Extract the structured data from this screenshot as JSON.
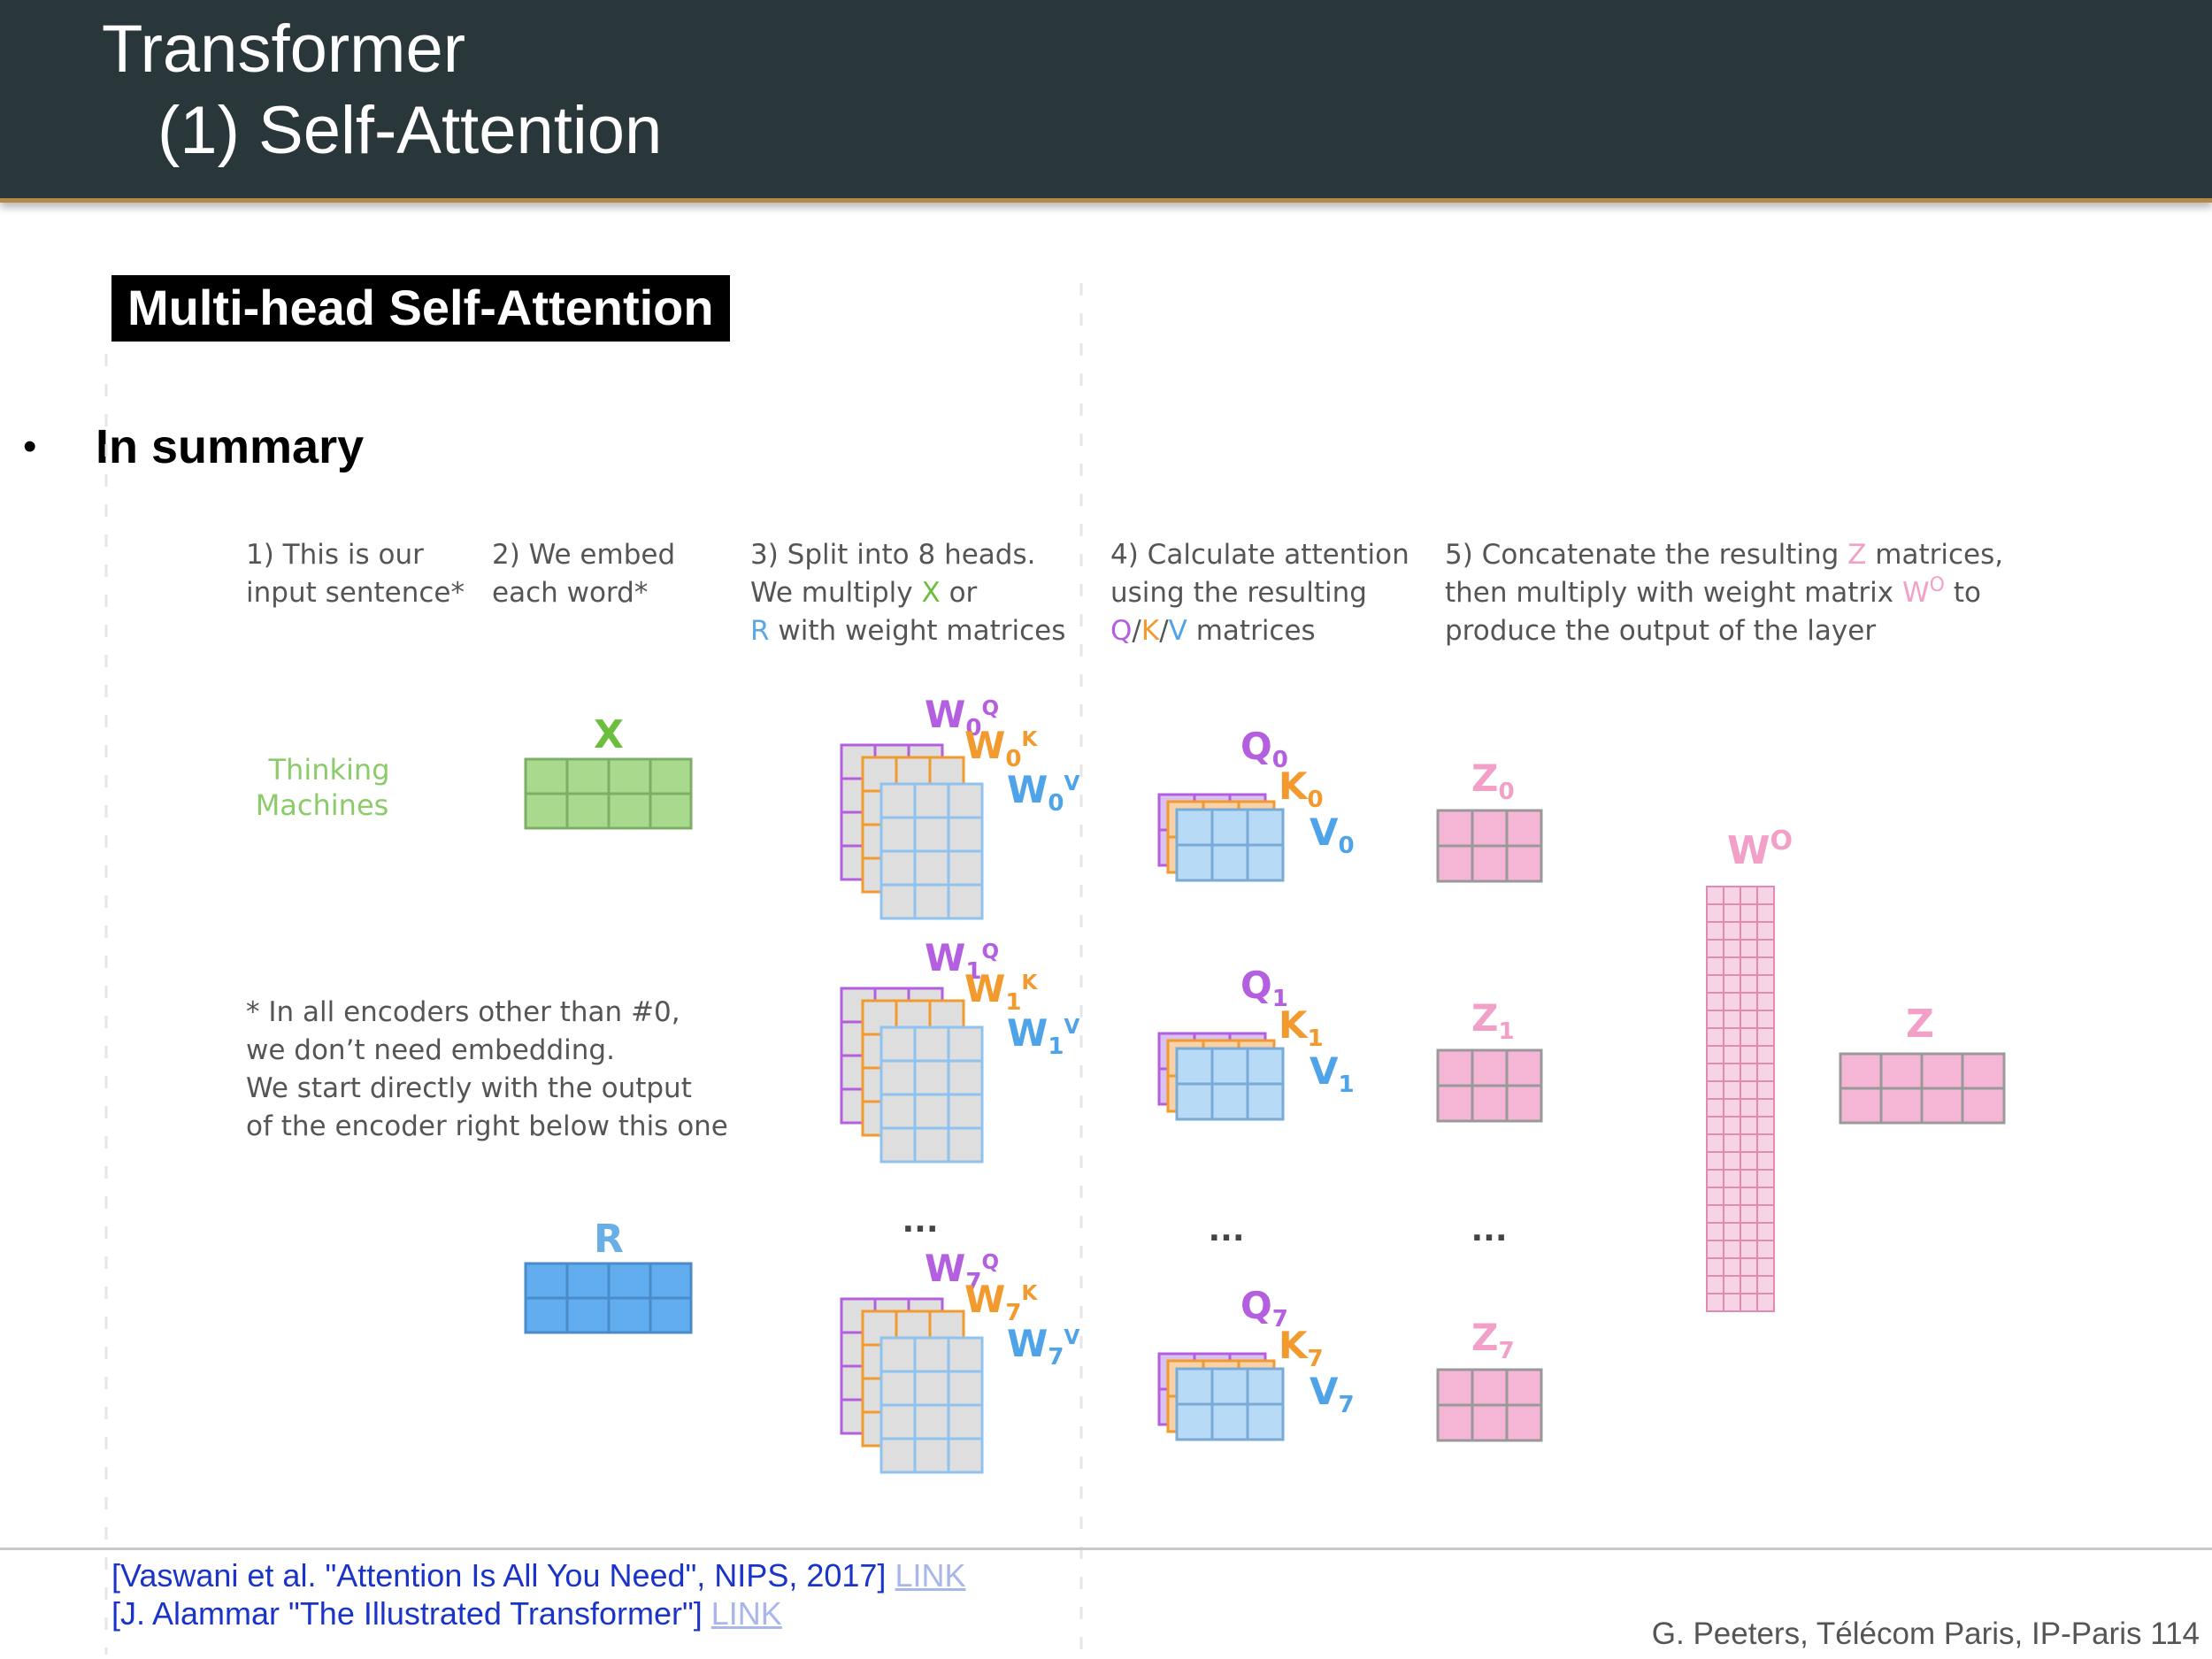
{
  "header": {
    "title_line1": "Transformer",
    "title_line2": "(1) Self-Attention"
  },
  "section_tag": "Multi-head Self-Attention",
  "bullet": "In summary",
  "steps": {
    "s1": [
      "1) This is our",
      "input sentence*"
    ],
    "s2": [
      "2) We embed",
      "each word*"
    ],
    "s3_l1": "3) Split into 8 heads.",
    "s3_l2_pre": "We multiply ",
    "s3_l2_x": "X",
    "s3_l2_post": " or",
    "s3_l3_r": "R",
    "s3_l3_post": " with weight matrices",
    "s4_l1": "4) Calculate attention",
    "s4_l2": "using the resulting",
    "s4_q": "Q",
    "s4_k": "K",
    "s4_v": "V",
    "s4_sep": "/",
    "s4_post": " matrices",
    "s5_l1_pre": "5) Concatenate the resulting ",
    "s5_l1_z": "Z",
    "s5_l1_post": " matrices,",
    "s5_l2_pre": "then multiply with weight matrix ",
    "s5_l2_wo": "W",
    "s5_l2_wo_sup": "O",
    "s5_l2_post": " to",
    "s5_l3": "produce the output of the layer"
  },
  "input_words": [
    "Thinking",
    "Machines"
  ],
  "footnote": [
    "* In all encoders other than #0,",
    "we don’t need embedding.",
    "We start directly with the output",
    "of the encoder right below this one"
  ],
  "labels": {
    "x": "X",
    "r": "R",
    "w": "W",
    "q": "Q",
    "k": "K",
    "v": "V",
    "z": "Z",
    "o": "O",
    "heads": [
      "0",
      "1",
      "7"
    ],
    "ellipsis": "..."
  },
  "colors": {
    "header_bg": "#29373b",
    "header_rule": "#b38a48",
    "x_green": "#6cbf3c",
    "r_blue": "#5aa8e6",
    "q_purple": "#b35fe0",
    "k_orange": "#f39a2e",
    "v_blue": "#4fa3e8",
    "z_pink": "#f2a0c8",
    "ref_blue": "#1a33c8",
    "link": "#a9b6ea"
  },
  "references": [
    {
      "text": "[Vaswani et al. \"Attention Is All You Need\", NIPS, 2017] ",
      "link": "LINK"
    },
    {
      "text": "[J. Alammar \"The Illustrated Transformer\"] ",
      "link": "LINK"
    }
  ],
  "footer_credit": "G. Peeters, Télécom Paris, IP-Paris 114"
}
